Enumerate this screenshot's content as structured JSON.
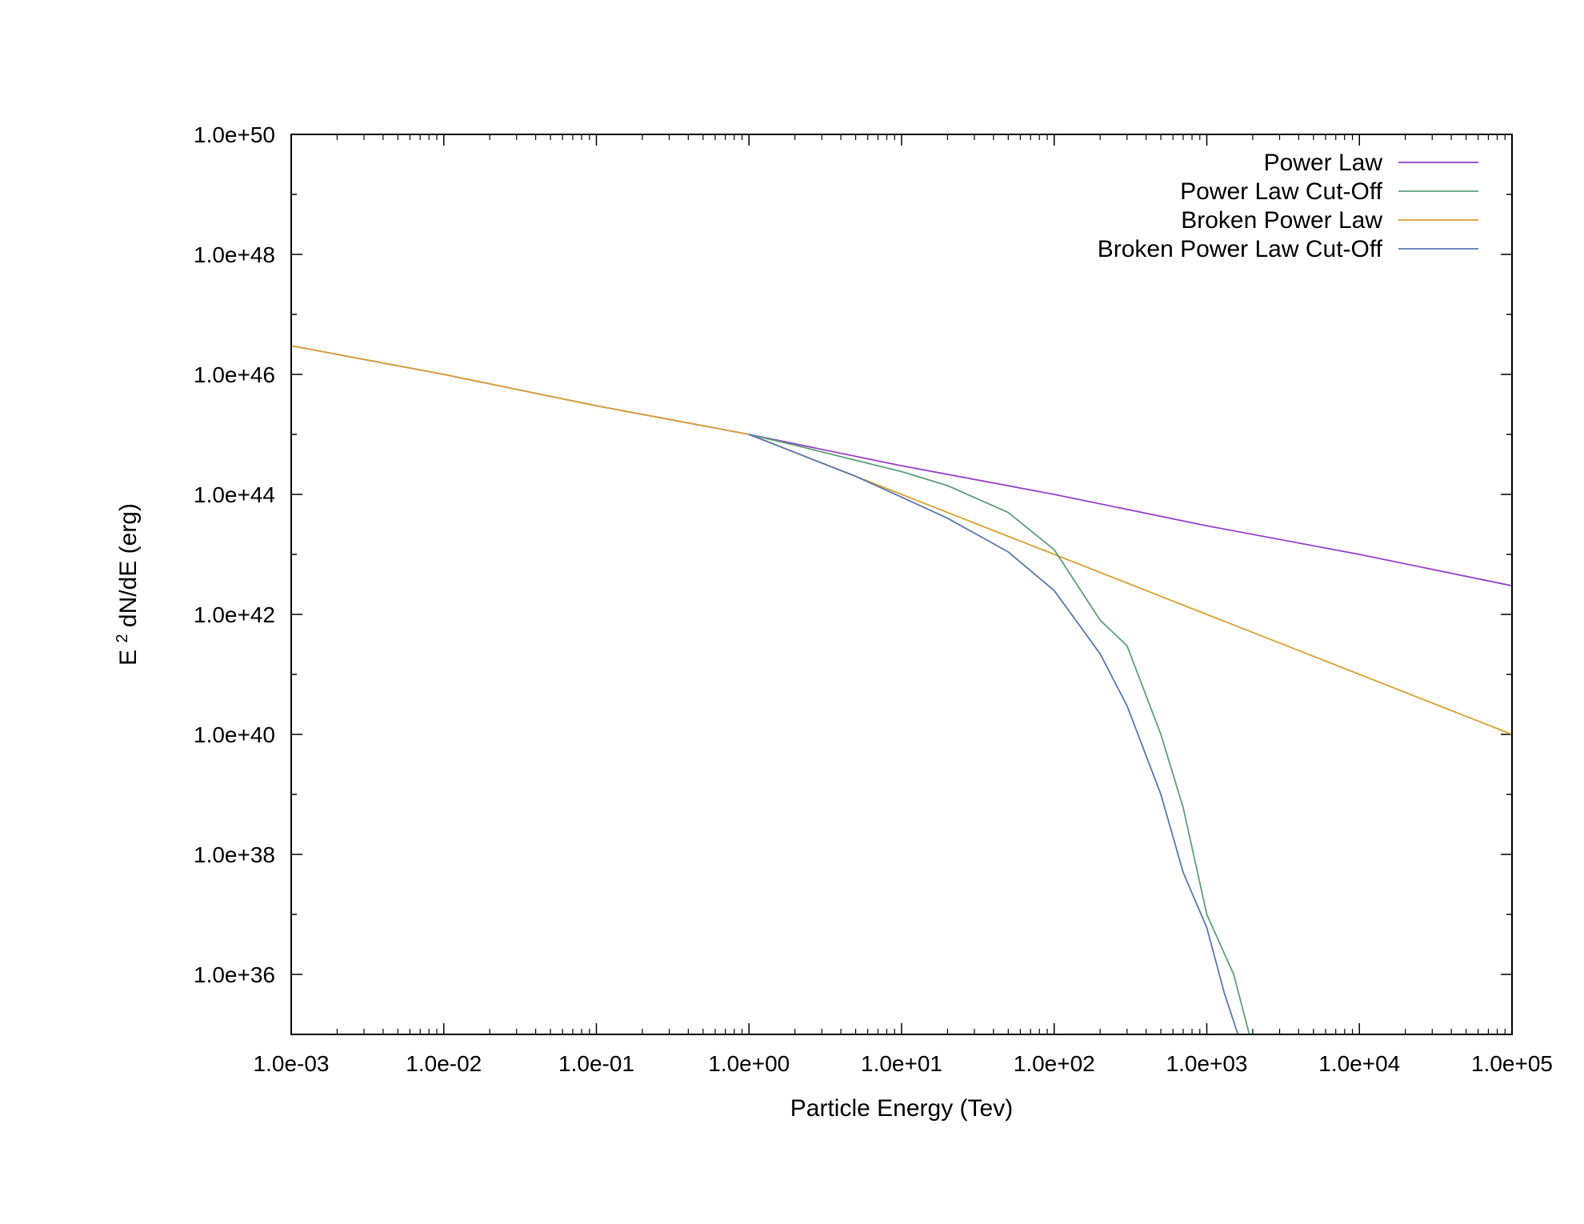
{
  "chart_data": {
    "type": "line",
    "xlabel": "Particle Energy (Tev)",
    "ylabel": {
      "base": "E",
      "sup": "2",
      "rest": " dN/dE (erg)"
    },
    "xscale": "log",
    "yscale": "log",
    "xlim": [
      0.001,
      100000
    ],
    "ylim": [
      1e+35,
      1e+50
    ],
    "x_ticks": [
      {
        "value": 0.001,
        "label": "1.0e-03"
      },
      {
        "value": 0.01,
        "label": "1.0e-02"
      },
      {
        "value": 0.1,
        "label": "1.0e-01"
      },
      {
        "value": 1,
        "label": "1.0e+00"
      },
      {
        "value": 10,
        "label": "1.0e+01"
      },
      {
        "value": 100,
        "label": "1.0e+02"
      },
      {
        "value": 1000,
        "label": "1.0e+03"
      },
      {
        "value": 10000,
        "label": "1.0e+04"
      },
      {
        "value": 100000,
        "label": "1.0e+05"
      }
    ],
    "y_ticks": [
      {
        "value": 1e+36,
        "label": "1.0e+36"
      },
      {
        "value": 1e+38,
        "label": "1.0e+38"
      },
      {
        "value": 1e+40,
        "label": "1.0e+40"
      },
      {
        "value": 1e+42,
        "label": "1.0e+42"
      },
      {
        "value": 1e+44,
        "label": "1.0e+44"
      },
      {
        "value": 1e+46,
        "label": "1.0e+46"
      },
      {
        "value": 1e+48,
        "label": "1.0e+48"
      },
      {
        "value": 1e+50,
        "label": "1.0e+50"
      }
    ],
    "legend_position": "top-right",
    "grid": false,
    "series": [
      {
        "name": "Power Law",
        "color": "#9440c8",
        "x": [
          0.001,
          0.01,
          0.1,
          1,
          10,
          100,
          1000,
          10000,
          100000
        ],
        "y": [
          3e+46,
          1e+46,
          3e+45,
          1e+45,
          3e+44,
          1e+44,
          3e+43,
          1e+43,
          3e+42
        ]
      },
      {
        "name": "Power Law Cut-Off",
        "color": "#5e9e7a",
        "x": [
          1,
          2,
          5,
          10,
          20,
          50,
          100,
          200,
          300,
          500,
          700,
          1000,
          1500,
          1900
        ],
        "y": [
          1e+45,
          6.6e+44,
          3.7e+44,
          2.4e+44,
          1.4e+44,
          5e+43,
          1.2e+43,
          8e+41,
          3e+41,
          1e+40,
          6e+38,
          1e+37,
          1e+36,
          1e+35
        ]
      },
      {
        "name": "Broken Power Law",
        "color": "#d9a030",
        "x": [
          0.001,
          0.01,
          0.1,
          1,
          10,
          100,
          1000,
          10000,
          100000
        ],
        "y": [
          3e+46,
          1e+46,
          3e+45,
          1e+45,
          1e+44,
          1e+43,
          1e+42,
          1e+41,
          1e+40
        ]
      },
      {
        "name": "Broken Power Law Cut-Off",
        "color": "#5a78b0",
        "x": [
          1,
          2,
          5,
          10,
          20,
          50,
          100,
          200,
          300,
          500,
          700,
          1000,
          1300,
          1600
        ],
        "y": [
          1e+45,
          5e+44,
          2e+44,
          9e+43,
          4e+43,
          1.1e+43,
          2.5e+42,
          2.2e+41,
          3e+40,
          1e+39,
          5e+37,
          6e+36,
          5e+35,
          1e+35
        ]
      }
    ]
  }
}
